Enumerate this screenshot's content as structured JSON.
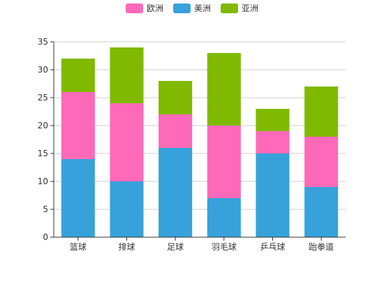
{
  "chart_data": {
    "type": "bar",
    "stacked": true,
    "categories": [
      "篮球",
      "排球",
      "足球",
      "羽毛球",
      "乒乓球",
      "跆拳道"
    ],
    "series": [
      {
        "name": "美洲",
        "color": "#37a2da",
        "values": [
          14,
          10,
          16,
          7,
          15,
          9
        ]
      },
      {
        "name": "欧洲",
        "color": "#ff69b9",
        "values": [
          12,
          14,
          6,
          13,
          4,
          9
        ]
      },
      {
        "name": "亚洲",
        "color": "#7fba00",
        "values": [
          6,
          10,
          6,
          13,
          4,
          9
        ]
      }
    ],
    "legend_order": [
      "欧洲",
      "美洲",
      "亚洲"
    ],
    "legend_position": "top-center",
    "ylim": [
      0,
      35
    ],
    "yticks": [
      0,
      5,
      10,
      15,
      20,
      25,
      30,
      35
    ],
    "grid": true
  }
}
